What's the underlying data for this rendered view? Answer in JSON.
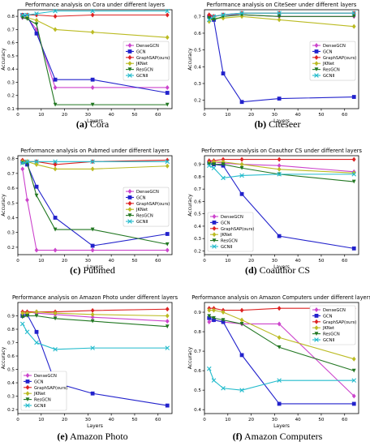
{
  "colors": {
    "DenseGCN": "#cc44cc",
    "GCN": "#2222cc",
    "GraphSAP(ours)": "#dd2222",
    "JKNet": "#bbbb22",
    "ResGCN": "#227722",
    "GCNII": "#22bbcc"
  },
  "captions": [
    {
      "tag": "(a)",
      "name": "Cora"
    },
    {
      "tag": "(b)",
      "name": "Citeseer"
    },
    {
      "tag": "(c)",
      "name": "Pubmed"
    },
    {
      "tag": "(d)",
      "name": "Coauthor CS"
    },
    {
      "tag": "(e)",
      "name": "Amazon Photo"
    },
    {
      "tag": "(f)",
      "name": "Amazon Computers"
    }
  ],
  "chart_data": [
    {
      "type": "line",
      "title": "Performance analysis on Cora under different layers",
      "xlabel": "Layers",
      "ylabel": "Accuracy",
      "xlim": [
        0,
        66
      ],
      "ylim": [
        0.1,
        0.85
      ],
      "xticks": [
        0,
        10,
        20,
        30,
        40,
        50,
        60
      ],
      "yticks": [
        0.1,
        0.2,
        0.3,
        0.4,
        0.5,
        0.6,
        0.7,
        0.8
      ],
      "legend": "center-right",
      "x": [
        2,
        4,
        8,
        16,
        32,
        64
      ],
      "series": [
        {
          "name": "DenseGCN",
          "values": [
            0.79,
            0.79,
            0.7,
            0.26,
            0.26,
            0.26
          ]
        },
        {
          "name": "GCN",
          "values": [
            0.81,
            0.8,
            0.67,
            0.32,
            0.32,
            0.22
          ]
        },
        {
          "name": "GraphSAP(ours)",
          "values": [
            0.81,
            0.81,
            0.81,
            0.8,
            0.81,
            0.81
          ]
        },
        {
          "name": "JKNet",
          "values": [
            0.8,
            0.79,
            0.77,
            0.7,
            0.68,
            0.64
          ]
        },
        {
          "name": "ResGCN",
          "values": [
            0.79,
            0.78,
            0.74,
            0.13,
            0.13,
            0.13
          ]
        },
        {
          "name": "GCNII",
          "values": [
            0.81,
            0.81,
            0.82,
            0.84,
            0.84,
            0.84
          ]
        }
      ]
    },
    {
      "type": "line",
      "title": "Performance analysis on CiteSeer under different layers",
      "xlabel": "Layers",
      "ylabel": "Accuracy",
      "xlim": [
        0,
        66
      ],
      "ylim": [
        0.15,
        0.74
      ],
      "xticks": [
        0,
        10,
        20,
        30,
        40,
        50,
        60
      ],
      "yticks": [
        0.2,
        0.3,
        0.4,
        0.5,
        0.6,
        0.7
      ],
      "legend": "center-right",
      "x": [
        2,
        4,
        8,
        16,
        32,
        64
      ],
      "series": [
        {
          "name": "DenseGCN",
          "values": [
            0.7,
            0.7,
            0.71,
            0.71,
            0.7,
            0.7
          ]
        },
        {
          "name": "GCN",
          "values": [
            0.7,
            0.68,
            0.36,
            0.19,
            0.21,
            0.22
          ]
        },
        {
          "name": "GraphSAP(ours)",
          "values": [
            0.71,
            0.7,
            0.71,
            0.72,
            0.72,
            0.72
          ]
        },
        {
          "name": "JKNet",
          "values": [
            0.67,
            0.69,
            0.69,
            0.7,
            0.68,
            0.64
          ]
        },
        {
          "name": "ResGCN",
          "values": [
            0.69,
            0.68,
            0.7,
            0.71,
            0.7,
            0.7
          ]
        },
        {
          "name": "GCNII",
          "values": [
            0.68,
            0.7,
            0.71,
            0.72,
            0.72,
            0.72
          ]
        }
      ]
    },
    {
      "type": "line",
      "title": "Performance analysis on Pubmed under different layers",
      "xlabel": "Layers",
      "ylabel": "Accuracy",
      "xlim": [
        0,
        66
      ],
      "ylim": [
        0.15,
        0.82
      ],
      "xticks": [
        0,
        10,
        20,
        30,
        40,
        50,
        60
      ],
      "yticks": [
        0.2,
        0.3,
        0.4,
        0.5,
        0.6,
        0.7,
        0.8
      ],
      "legend": "center-right",
      "x": [
        2,
        4,
        8,
        16,
        32,
        64
      ],
      "series": [
        {
          "name": "DenseGCN",
          "values": [
            0.73,
            0.52,
            0.18,
            0.18,
            0.18,
            0.18
          ]
        },
        {
          "name": "GCN",
          "values": [
            0.78,
            0.76,
            0.61,
            0.4,
            0.21,
            0.29
          ]
        },
        {
          "name": "GraphSAP(ours)",
          "values": [
            0.79,
            0.78,
            0.78,
            0.76,
            0.78,
            0.79
          ]
        },
        {
          "name": "JKNet",
          "values": [
            0.78,
            0.78,
            0.76,
            0.73,
            0.73,
            0.75
          ]
        },
        {
          "name": "ResGCN",
          "values": [
            0.77,
            0.77,
            0.55,
            0.32,
            0.32,
            0.22
          ]
        },
        {
          "name": "GCNII",
          "values": [
            0.77,
            0.78,
            0.78,
            0.78,
            0.78,
            0.78
          ]
        }
      ]
    },
    {
      "type": "line",
      "title": "Performance analysis on Coauthor CS under different layers",
      "xlabel": "Layers",
      "ylabel": "Accuracy",
      "xlim": [
        0,
        66
      ],
      "ylim": [
        0.17,
        0.97
      ],
      "xticks": [
        0,
        10,
        20,
        30,
        40,
        50,
        60
      ],
      "yticks": [
        0.2,
        0.3,
        0.4,
        0.5,
        0.6,
        0.7,
        0.8,
        0.9
      ],
      "legend": "lower-left",
      "x": [
        2,
        4,
        8,
        16,
        32,
        64
      ],
      "series": [
        {
          "name": "DenseGCN",
          "values": [
            0.92,
            0.92,
            0.91,
            0.9,
            0.89,
            0.84
          ]
        },
        {
          "name": "GCN",
          "values": [
            0.91,
            0.9,
            0.89,
            0.66,
            0.32,
            0.22
          ]
        },
        {
          "name": "GraphSAP(ours)",
          "values": [
            0.93,
            0.93,
            0.94,
            0.94,
            0.94,
            0.94
          ]
        },
        {
          "name": "JKNet",
          "values": [
            0.91,
            0.92,
            0.92,
            0.9,
            0.86,
            0.83
          ]
        },
        {
          "name": "ResGCN",
          "values": [
            0.9,
            0.9,
            0.9,
            0.87,
            0.82,
            0.76
          ]
        },
        {
          "name": "GCNII",
          "values": [
            0.89,
            0.87,
            0.79,
            0.81,
            0.82,
            0.82
          ]
        }
      ]
    },
    {
      "type": "line",
      "title": "Performance analysis on Amazon Photo under different layers",
      "xlabel": "Layers",
      "ylabel": "Accuracy",
      "xlim": [
        0,
        66
      ],
      "ylim": [
        0.17,
        1.0
      ],
      "xticks": [
        0,
        10,
        20,
        30,
        40,
        50,
        60
      ],
      "yticks": [
        0.2,
        0.3,
        0.4,
        0.5,
        0.6,
        0.7,
        0.8,
        0.9
      ],
      "legend": "lower-left",
      "x": [
        2,
        4,
        8,
        16,
        32,
        64
      ],
      "series": [
        {
          "name": "DenseGCN",
          "values": [
            0.91,
            0.93,
            0.92,
            0.91,
            0.89,
            0.86
          ]
        },
        {
          "name": "GCN",
          "values": [
            0.9,
            0.91,
            0.78,
            0.4,
            0.32,
            0.23
          ]
        },
        {
          "name": "GraphSAP(ours)",
          "values": [
            0.93,
            0.93,
            0.93,
            0.93,
            0.94,
            0.95
          ]
        },
        {
          "name": "JKNet",
          "values": [
            0.92,
            0.92,
            0.93,
            0.92,
            0.91,
            0.9
          ]
        },
        {
          "name": "ResGCN",
          "values": [
            0.89,
            0.9,
            0.9,
            0.88,
            0.86,
            0.82
          ]
        },
        {
          "name": "GCNII",
          "values": [
            0.84,
            0.78,
            0.7,
            0.65,
            0.66,
            0.66
          ]
        }
      ]
    },
    {
      "type": "line",
      "title": "Performance analysis on Amazon Computers under different layers",
      "xlabel": "Layers",
      "ylabel": "Accuracy",
      "xlim": [
        0,
        66
      ],
      "ylim": [
        0.38,
        0.95
      ],
      "xticks": [
        0,
        10,
        20,
        30,
        40,
        50,
        60
      ],
      "yticks": [
        0.4,
        0.5,
        0.6,
        0.7,
        0.8,
        0.9
      ],
      "legend": "top-right",
      "x": [
        2,
        4,
        8,
        16,
        32,
        64
      ],
      "series": [
        {
          "name": "DenseGCN",
          "values": [
            0.85,
            0.86,
            0.85,
            0.84,
            0.84,
            0.47
          ]
        },
        {
          "name": "GCN",
          "values": [
            0.87,
            0.86,
            0.85,
            0.68,
            0.43,
            0.43
          ]
        },
        {
          "name": "GraphSAP(ours)",
          "values": [
            0.92,
            0.92,
            0.91,
            0.91,
            0.92,
            0.92
          ]
        },
        {
          "name": "JKNet",
          "values": [
            0.91,
            0.91,
            0.9,
            0.86,
            0.77,
            0.66
          ]
        },
        {
          "name": "ResGCN",
          "values": [
            0.88,
            0.87,
            0.86,
            0.84,
            0.72,
            0.6
          ]
        },
        {
          "name": "GCNII",
          "values": [
            0.61,
            0.55,
            0.51,
            0.5,
            0.55,
            0.55
          ]
        }
      ]
    }
  ]
}
